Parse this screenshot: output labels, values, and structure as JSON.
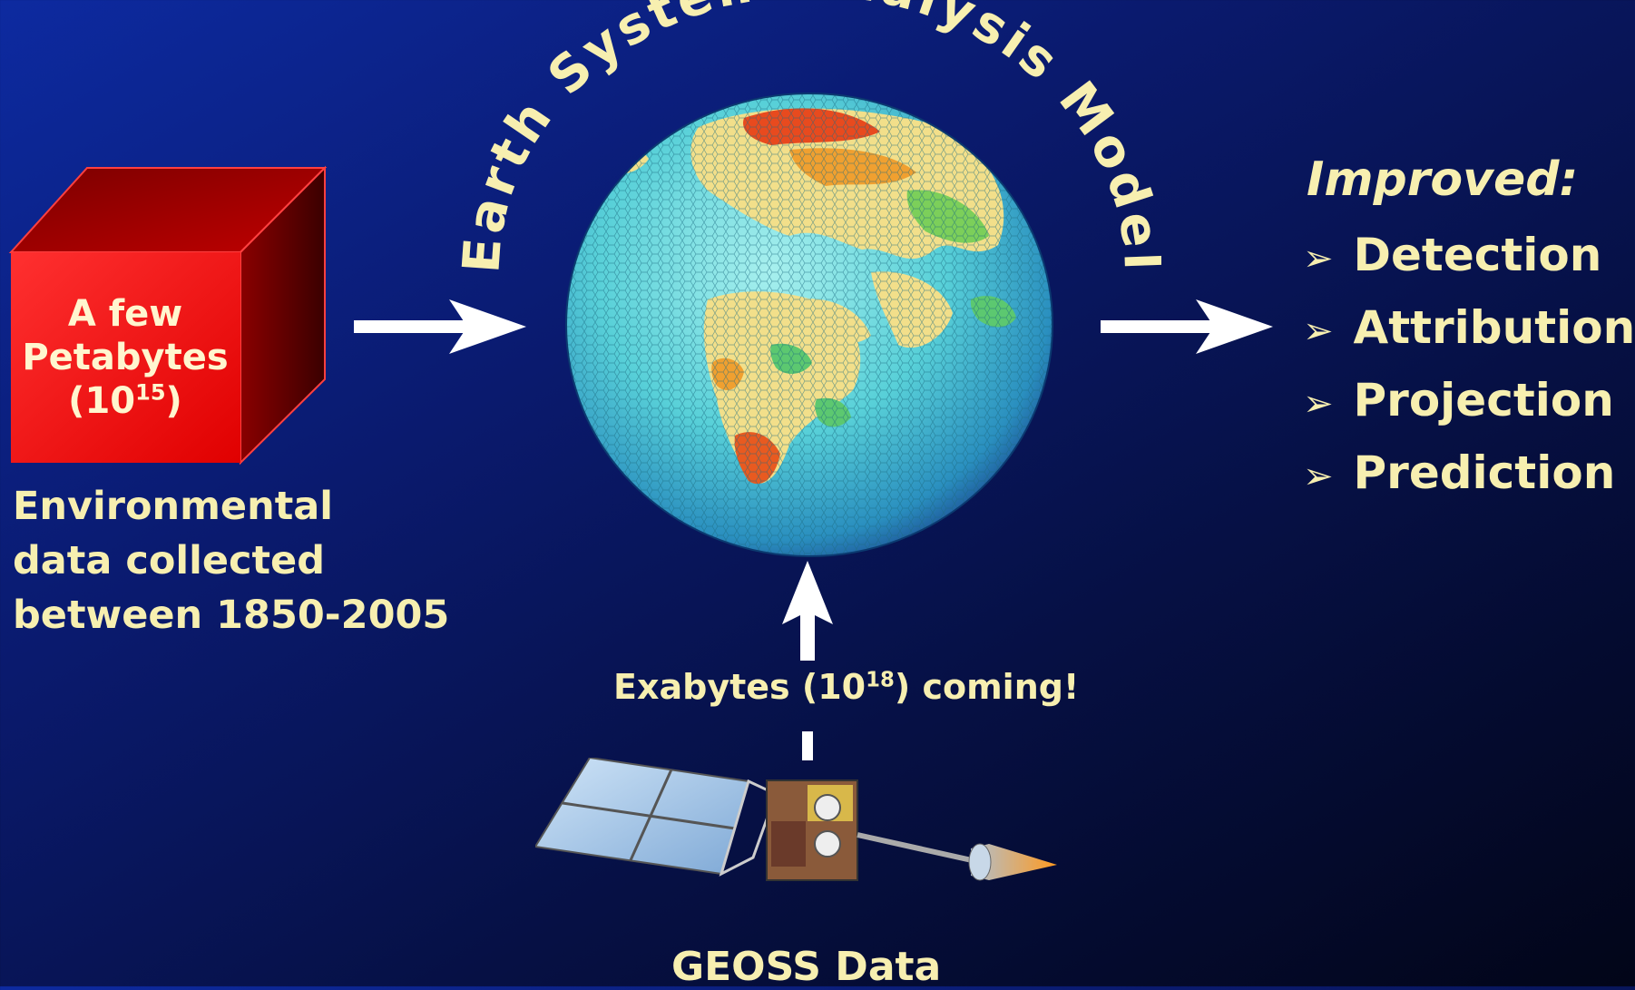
{
  "title_arc": "Earth System Analysis Model",
  "data_cube": {
    "line1": "A few",
    "line2": "Petabytes",
    "line3_base": "(10",
    "line3_exp": "15",
    "line3_end": ")"
  },
  "environmental": {
    "line1": "Environmental",
    "line2": "data collected",
    "line3": "between 1850-2005"
  },
  "improved": {
    "heading": "Improved:",
    "bullet": "➢",
    "items": [
      "Detection",
      "Attribution",
      "Projection",
      "Prediction"
    ]
  },
  "exabytes": {
    "prefix": "Exabytes (10",
    "exp": "18",
    "suffix": ") coming!"
  },
  "geoss_label": "GEOSS Data",
  "colors": {
    "text": "#f7efb0",
    "cube": "#ff1a1a",
    "arrow": "#ffffff"
  }
}
